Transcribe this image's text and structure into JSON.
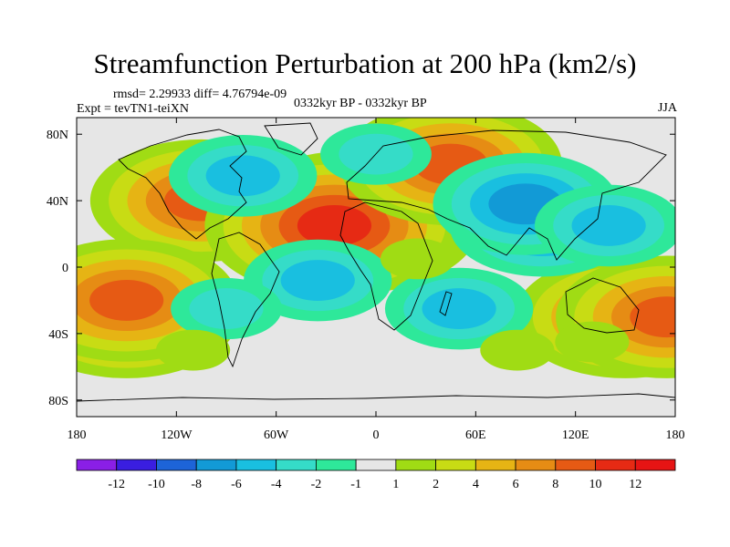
{
  "chart_data": {
    "type": "heatmap",
    "title": "Streamfunction Perturbation at 200 hPa (km2/s)",
    "rmsd_line": "rmsd= 2.29933 diff= 4.76794e-09",
    "expt_line": "Expt = tevTN1-teiXN",
    "period": "0332kyr BP - 0332kyr BP",
    "season": "JJA",
    "xlim": [
      -180,
      180
    ],
    "ylim": [
      -90,
      90
    ],
    "x_ticks": [
      {
        "value": -180,
        "label": "180"
      },
      {
        "value": -120,
        "label": "120W"
      },
      {
        "value": -60,
        "label": "60W"
      },
      {
        "value": 0,
        "label": "0"
      },
      {
        "value": 60,
        "label": "60E"
      },
      {
        "value": 120,
        "label": "120E"
      },
      {
        "value": 180,
        "label": "180"
      }
    ],
    "y_ticks": [
      {
        "value": 80,
        "label": "80N"
      },
      {
        "value": 40,
        "label": "40N"
      },
      {
        "value": 0,
        "label": "0"
      },
      {
        "value": -40,
        "label": "40S"
      },
      {
        "value": -80,
        "label": "80S"
      }
    ],
    "colorbar": {
      "labels": [
        "-12",
        "-10",
        "-8",
        "-6",
        "-4",
        "-2",
        "-1",
        "1",
        "2",
        "4",
        "6",
        "8",
        "10",
        "12"
      ],
      "colors": [
        "#8a1fe6",
        "#3a1ee0",
        "#1d64d8",
        "#129ad6",
        "#19bfe0",
        "#35dcc8",
        "#2ee89a",
        "#e6e6e6",
        "#a0dc14",
        "#c8dc14",
        "#e6b414",
        "#e68c14",
        "#e65a14",
        "#e62a14",
        "#e61414"
      ]
    },
    "features": [
      {
        "lon": -105,
        "lat": 40,
        "level": 5
      },
      {
        "lon": -150,
        "lat": -30,
        "level": 5
      },
      {
        "lon": -150,
        "lat": -20,
        "level": 5
      },
      {
        "lon": -15,
        "lat": 27,
        "level": 6
      },
      {
        "lon": -25,
        "lat": 25,
        "level": 6
      },
      {
        "lon": 45,
        "lat": 62,
        "level": 5
      },
      {
        "lon": 150,
        "lat": -30,
        "level": 5
      },
      {
        "lon": 175,
        "lat": -30,
        "level": 5
      },
      {
        "lon": 100,
        "lat": 25,
        "level": -4
      },
      {
        "lon": 90,
        "lat": 38,
        "level": -4
      },
      {
        "lon": 140,
        "lat": 25,
        "level": -3
      },
      {
        "lon": -80,
        "lat": 55,
        "level": -3
      },
      {
        "lon": 50,
        "lat": -25,
        "level": -3
      },
      {
        "lon": -35,
        "lat": -8,
        "level": -3
      },
      {
        "lon": -90,
        "lat": -25,
        "level": -2
      },
      {
        "lon": 0,
        "lat": 68,
        "level": -2
      },
      {
        "lon": 25,
        "lat": 5,
        "level": 1
      },
      {
        "lon": 130,
        "lat": -45,
        "level": 1
      },
      {
        "lon": -110,
        "lat": -50,
        "level": 1
      },
      {
        "lon": 85,
        "lat": -50,
        "level": 1
      }
    ]
  }
}
